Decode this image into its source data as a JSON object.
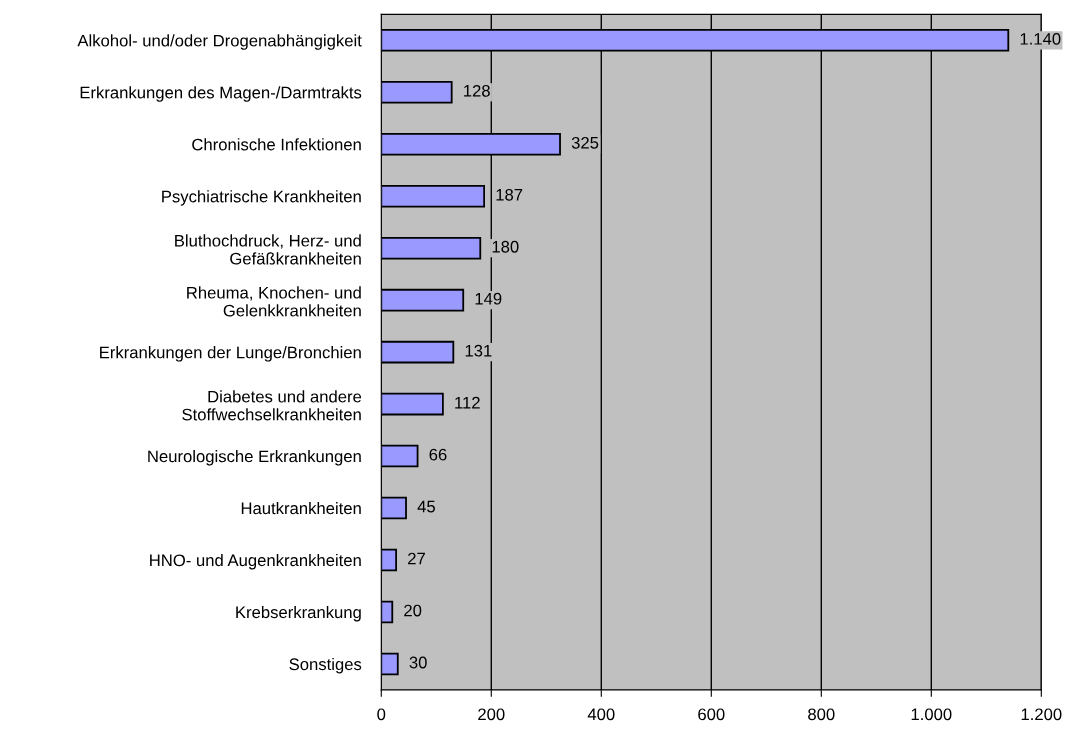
{
  "chart_data": {
    "type": "bar",
    "orientation": "horizontal",
    "categories": [
      "Alkohol- und/oder Drogenabhängigkeit",
      "Erkrankungen des Magen-/Darmtrakts",
      "Chronische Infektionen",
      "Psychiatrische Krankheiten",
      "Bluthochdruck, Herz- und\nGefäßkrankheiten",
      "Rheuma, Knochen- und\nGelenkkrankheiten",
      "Erkrankungen der Lunge/Bronchien",
      "Diabetes und andere\nStoffwechselkrankheiten",
      "Neurologische Erkrankungen",
      "Hautkrankheiten",
      "HNO- und Augenkrankheiten",
      "Krebserkrankung",
      "Sonstiges"
    ],
    "values": [
      1140,
      128,
      325,
      187,
      180,
      149,
      131,
      112,
      66,
      45,
      27,
      20,
      30
    ],
    "value_labels": [
      "1.140",
      "128",
      "325",
      "187",
      "180",
      "149",
      "131",
      "112",
      "66",
      "45",
      "27",
      "20",
      "30"
    ],
    "color": "#9999ff",
    "xlim": [
      0,
      1200
    ],
    "xticks": [
      0,
      200,
      400,
      600,
      800,
      {
        "value": 1000,
        "label": "1.000"
      },
      {
        "value": 1200,
        "label": "1.200"
      }
    ],
    "grid": "x",
    "legend": false
  }
}
